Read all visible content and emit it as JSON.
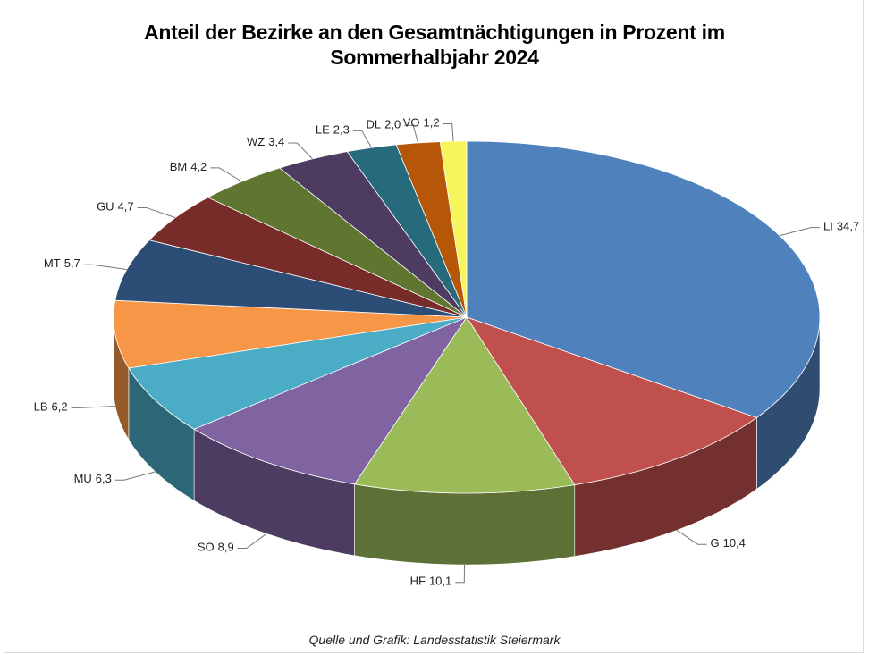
{
  "chart_data": {
    "type": "pie3d",
    "title": "Anteil der Bezirke an den Gesamtnächtigungen in Prozent im Sommerhalbjahr 2024",
    "source": "Quelle und Grafik: Landesstatistik Steiermark",
    "categories": [
      "LI",
      "G",
      "HF",
      "SO",
      "MU",
      "LB",
      "MT",
      "GU",
      "BM",
      "WZ",
      "LE",
      "DL",
      "VO"
    ],
    "values": [
      34.7,
      10.4,
      10.1,
      8.9,
      6.3,
      6.2,
      5.7,
      4.7,
      4.2,
      3.4,
      2.3,
      2.0,
      1.2
    ],
    "value_labels": [
      "34,7",
      "10,4",
      "10,1",
      "8,9",
      "6,3",
      "6,2",
      "5,7",
      "4,7",
      "4,2",
      "3,4",
      "2,3",
      "2,0",
      "1,2"
    ],
    "colors": [
      "#4f81bd",
      "#c0504d",
      "#9bbb59",
      "#8064a2",
      "#4bacc6",
      "#f79646",
      "#2c4d75",
      "#772c2a",
      "#5f7530",
      "#4d3b62",
      "#276a7c",
      "#b65708",
      "#f6f65c"
    ]
  }
}
